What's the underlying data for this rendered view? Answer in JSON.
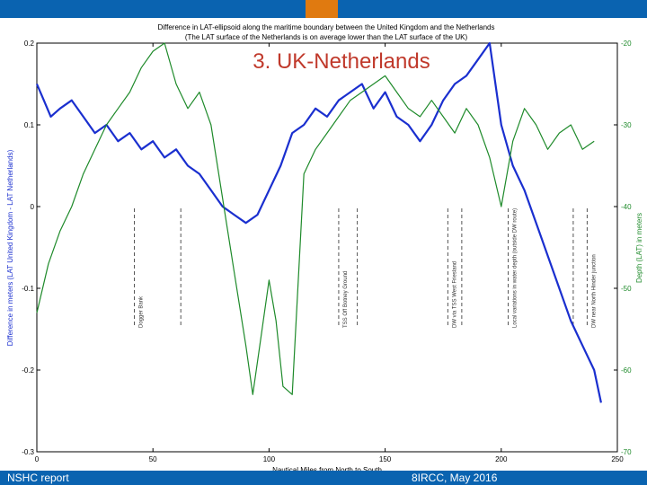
{
  "slide": {
    "title": "3. UK-Netherlands",
    "footer_left": "NSHC report",
    "footer_right": "8IRCC, May 2016"
  },
  "colors": {
    "banner": "#0a63b0",
    "banner_accent": "#e07a10",
    "title": "#c0392b",
    "difference_series": "#1a2fcf",
    "depth_series": "#1e8a2a"
  },
  "chart_data": {
    "type": "line",
    "title": "Difference in LAT-ellipsoid along the maritime boundary between the United Kingdom and the Netherlands",
    "subtitle": "(The LAT surface of the Netherlands is on average lower than the LAT surface of the UK)",
    "xlabel": "Nautical Miles from North to South",
    "ylabel_left": "Difference in meters (LAT United Kingdom - LAT Netherlands)",
    "ylabel_right": "Depth (LAT) in meters",
    "xlim": [
      0,
      250
    ],
    "ylim_left": [
      -0.3,
      0.2
    ],
    "ylim_right": [
      -70,
      -20
    ],
    "x_ticks": [
      0,
      50,
      100,
      150,
      200,
      250
    ],
    "y_ticks_left": [
      -0.3,
      -0.2,
      -0.1,
      0,
      0.1,
      0.2
    ],
    "y_ticks_right": [
      -70,
      -60,
      -50,
      -40,
      -30,
      -20
    ],
    "grid": false,
    "series": [
      {
        "axis": "left",
        "x": [
          0,
          3,
          6,
          10,
          15,
          20,
          25,
          30,
          35,
          40,
          45,
          50,
          55,
          60,
          65,
          70,
          75,
          80,
          85,
          90,
          95,
          100,
          105,
          110,
          115,
          120,
          125,
          130,
          135,
          140,
          145,
          150,
          155,
          160,
          165,
          170,
          175,
          180,
          185,
          190,
          195,
          200,
          205,
          210,
          215,
          220,
          225,
          230,
          235,
          240,
          243
        ],
        "values": [
          0.15,
          0.13,
          0.11,
          0.12,
          0.13,
          0.11,
          0.09,
          0.1,
          0.08,
          0.09,
          0.07,
          0.08,
          0.06,
          0.07,
          0.05,
          0.04,
          0.02,
          0.0,
          -0.01,
          -0.02,
          -0.01,
          0.02,
          0.05,
          0.09,
          0.1,
          0.12,
          0.11,
          0.13,
          0.14,
          0.15,
          0.12,
          0.14,
          0.11,
          0.1,
          0.08,
          0.1,
          0.13,
          0.15,
          0.16,
          0.18,
          0.2,
          0.1,
          0.05,
          0.02,
          -0.02,
          -0.06,
          -0.1,
          -0.14,
          -0.17,
          -0.2,
          -0.24
        ]
      },
      {
        "axis": "right",
        "x": [
          0,
          5,
          10,
          15,
          20,
          25,
          30,
          35,
          40,
          45,
          50,
          55,
          60,
          65,
          70,
          75,
          80,
          85,
          90,
          93,
          96,
          100,
          103,
          106,
          110,
          115,
          120,
          125,
          130,
          135,
          140,
          145,
          150,
          155,
          160,
          165,
          170,
          175,
          180,
          185,
          190,
          195,
          200,
          205,
          210,
          215,
          220,
          225,
          230,
          235,
          240
        ],
        "values": [
          -53,
          -47,
          -43,
          -40,
          -36,
          -33,
          -30,
          -28,
          -26,
          -23,
          -21,
          -20,
          -25,
          -28,
          -26,
          -30,
          -39,
          -48,
          -57,
          -63,
          -57,
          -49,
          -54,
          -62,
          -63,
          -36,
          -33,
          -31,
          -29,
          -27,
          -26,
          -25,
          -24,
          -26,
          -28,
          -29,
          -27,
          -29,
          -31,
          -28,
          -30,
          -34,
          -40,
          -32,
          -28,
          -30,
          -33,
          -31,
          -30,
          -33,
          -32
        ]
      }
    ],
    "annotations": [
      {
        "x": 42,
        "text": "Dogger Bank"
      },
      {
        "x": 62,
        "text": ""
      },
      {
        "x": 130,
        "text": "TSS Off Botney Ground"
      },
      {
        "x": 138,
        "text": ""
      },
      {
        "x": 177,
        "text": "DW via TSS West Friesland"
      },
      {
        "x": 183,
        "text": ""
      },
      {
        "x": 203,
        "text": "Local variations in water depth (outside DW route)"
      },
      {
        "x": 231,
        "text": ""
      },
      {
        "x": 237,
        "text": "DW near North Hinder junction"
      }
    ]
  }
}
